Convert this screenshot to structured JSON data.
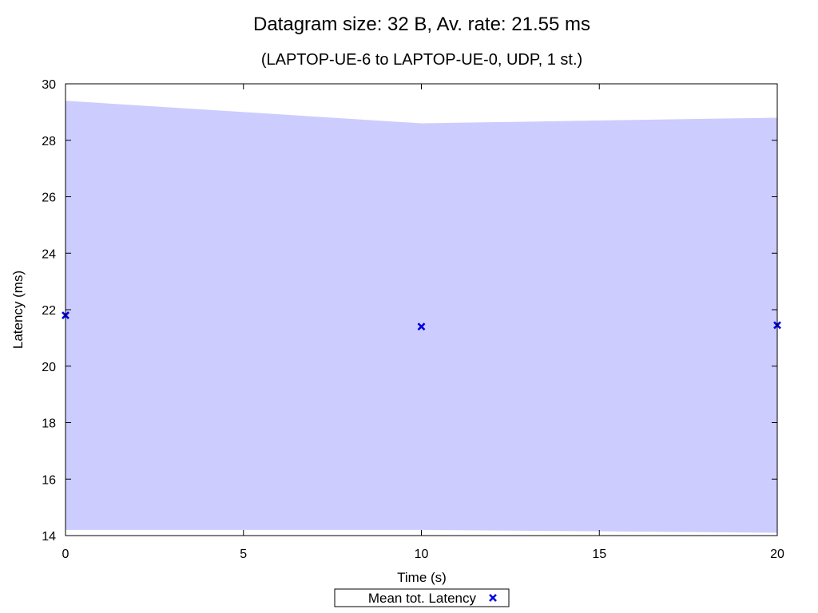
{
  "chart_data": {
    "type": "line",
    "title": "Datagram size: 32 B, Av. rate: 21.55 ms",
    "subtitle": "(LAPTOP-UE-6 to LAPTOP-UE-0, UDP, 1 st.)",
    "xlabel": "Time (s)",
    "ylabel": "Latency (ms)",
    "xlim": [
      0,
      20
    ],
    "ylim": [
      14,
      30
    ],
    "xticks": [
      0,
      5,
      10,
      15,
      20
    ],
    "yticks": [
      14,
      16,
      18,
      20,
      22,
      24,
      26,
      28,
      30
    ],
    "grid": false,
    "legend_position": "bottom-center",
    "band": {
      "x": [
        0,
        10,
        20
      ],
      "upper": [
        29.4,
        28.6,
        28.8
      ],
      "lower": [
        14.2,
        14.2,
        14.1
      ],
      "color": "#ccccff"
    },
    "series": [
      {
        "name": "Mean tot. Latency",
        "marker": "x",
        "color": "#0000e0",
        "x": [
          0,
          10,
          20
        ],
        "y": [
          21.8,
          21.4,
          21.45
        ]
      }
    ]
  }
}
